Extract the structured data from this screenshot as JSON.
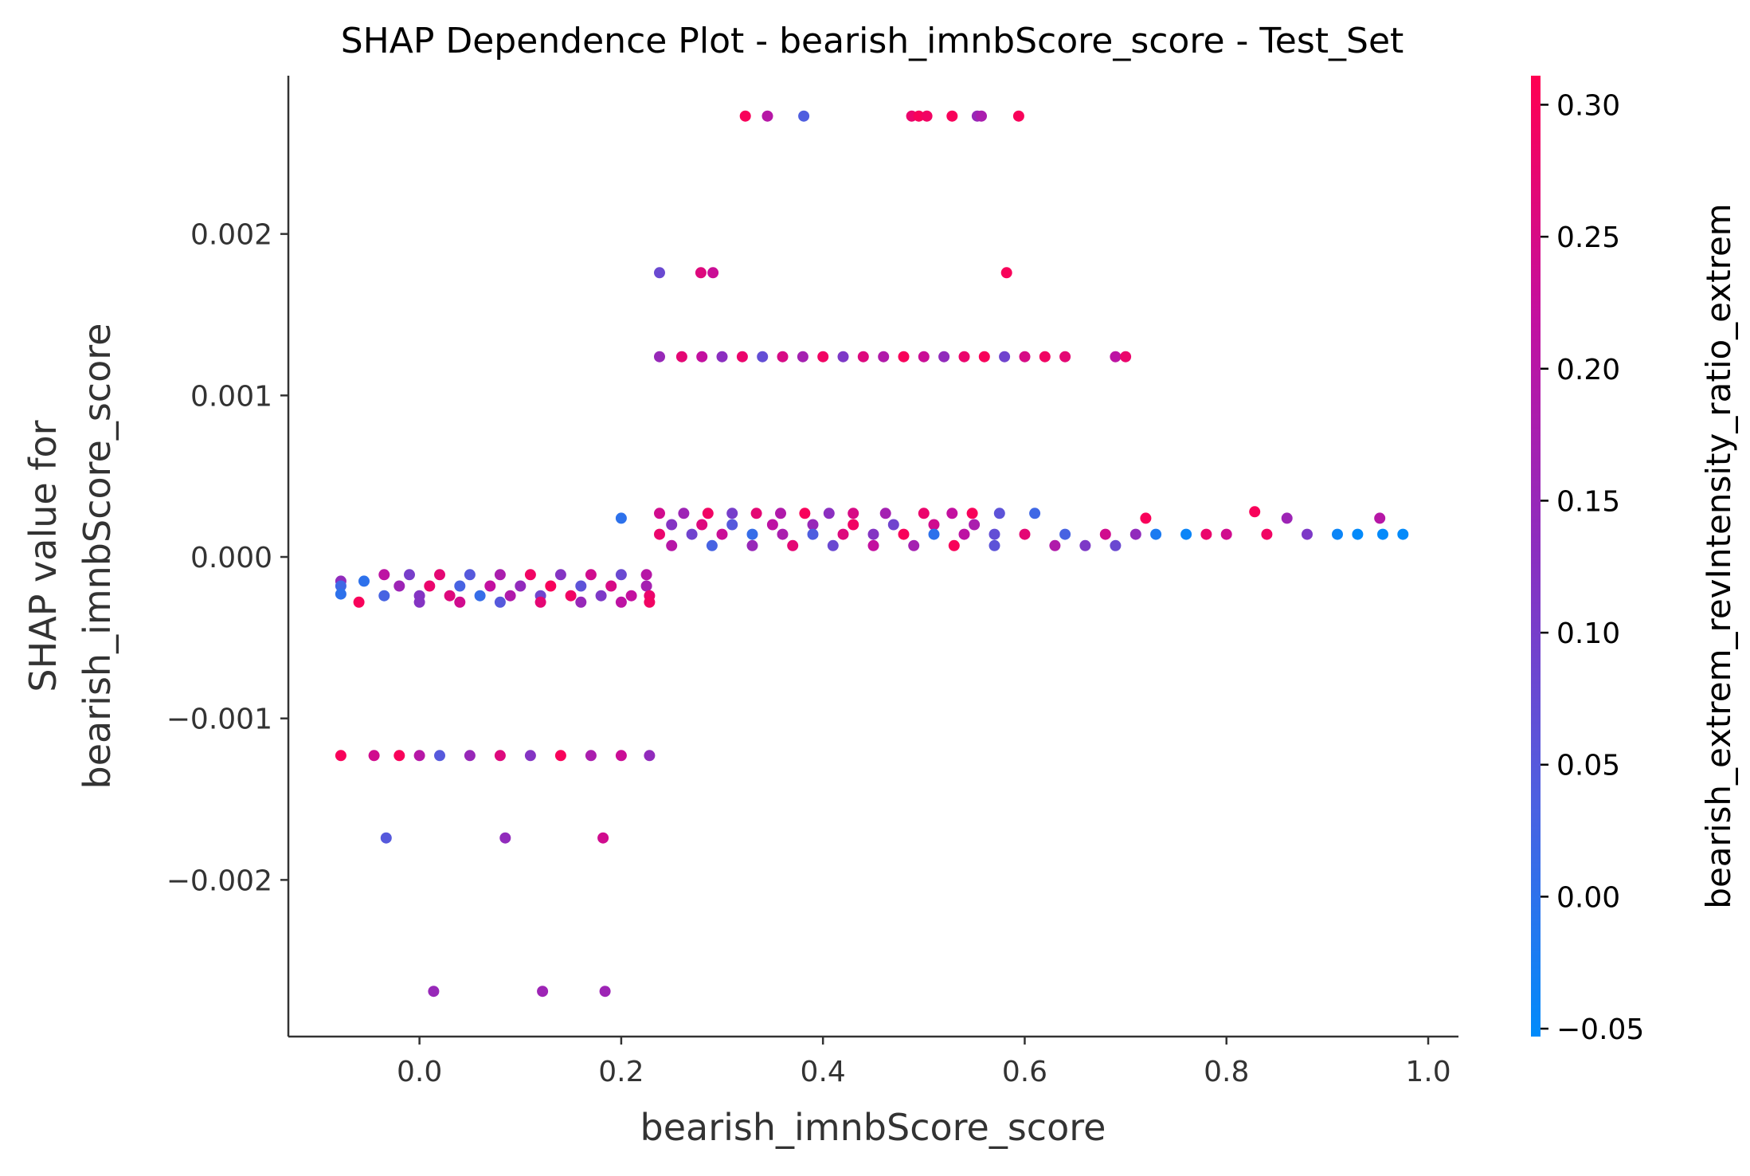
{
  "chart_data": {
    "type": "scatter",
    "title": "SHAP Dependence Plot - bearish_imnbScore_score - Test_Set",
    "xlabel": "bearish_imnbScore_score",
    "ylabel_line1": "SHAP value for",
    "ylabel_line2": "bearish_imnbScore_score",
    "xlim": [
      -0.13,
      1.03
    ],
    "ylim": [
      -0.00297,
      0.00298
    ],
    "xticks": [
      0.0,
      0.2,
      0.4,
      0.6,
      0.8,
      1.0
    ],
    "xtick_labels": [
      "0.0",
      "0.2",
      "0.4",
      "0.6",
      "0.8",
      "1.0"
    ],
    "yticks": [
      0.002,
      0.001,
      0.0,
      -0.001,
      -0.002
    ],
    "ytick_labels": [
      "0.002",
      "0.001",
      "0.000",
      "−0.001",
      "−0.002"
    ],
    "colorbar": {
      "label": "bearish_extrem_revIntensity_ratio_extrem",
      "range": [
        -0.053,
        0.311
      ],
      "ticks": [
        0.3,
        0.25,
        0.2,
        0.15,
        0.1,
        0.05,
        0.0,
        -0.05
      ],
      "tick_labels": [
        "0.30",
        "0.25",
        "0.20",
        "0.15",
        "0.10",
        "0.05",
        "0.00",
        "−0.05"
      ],
      "colormap": [
        "#008bfb",
        "#4e5fe0",
        "#8a2fc0",
        "#c3109f",
        "#ff0051"
      ]
    },
    "grid": false,
    "legend": "none",
    "points": [
      [
        0.323,
        0.00273,
        0.3
      ],
      [
        0.345,
        0.00273,
        0.2
      ],
      [
        0.381,
        0.00273,
        0.04
      ],
      [
        0.488,
        0.00273,
        0.28
      ],
      [
        0.495,
        0.00273,
        0.3
      ],
      [
        0.503,
        0.00273,
        0.29
      ],
      [
        0.528,
        0.00273,
        0.3
      ],
      [
        0.553,
        0.00273,
        0.15
      ],
      [
        0.557,
        0.00273,
        0.18
      ],
      [
        0.594,
        0.00273,
        0.3
      ],
      [
        0.238,
        0.00176,
        0.08
      ],
      [
        0.279,
        0.00176,
        0.26
      ],
      [
        0.291,
        0.00176,
        0.23
      ],
      [
        0.582,
        0.00176,
        0.3
      ],
      [
        0.238,
        0.00124,
        0.15
      ],
      [
        0.26,
        0.00124,
        0.27
      ],
      [
        0.28,
        0.00124,
        0.22
      ],
      [
        0.3,
        0.00124,
        0.13
      ],
      [
        0.32,
        0.00124,
        0.28
      ],
      [
        0.34,
        0.00124,
        0.07
      ],
      [
        0.36,
        0.00124,
        0.25
      ],
      [
        0.38,
        0.00124,
        0.17
      ],
      [
        0.4,
        0.00124,
        0.29
      ],
      [
        0.42,
        0.00124,
        0.11
      ],
      [
        0.44,
        0.00124,
        0.26
      ],
      [
        0.46,
        0.00124,
        0.19
      ],
      [
        0.48,
        0.00124,
        0.3
      ],
      [
        0.5,
        0.00124,
        0.23
      ],
      [
        0.52,
        0.00124,
        0.14
      ],
      [
        0.54,
        0.00124,
        0.28
      ],
      [
        0.56,
        0.00124,
        0.3
      ],
      [
        0.58,
        0.00124,
        0.09
      ],
      [
        0.6,
        0.00124,
        0.25
      ],
      [
        0.62,
        0.00124,
        0.29
      ],
      [
        0.64,
        0.00124,
        0.27
      ],
      [
        0.69,
        0.00124,
        0.21
      ],
      [
        0.7,
        0.00124,
        0.28
      ],
      [
        0.238,
        0.00027,
        0.24
      ],
      [
        0.262,
        0.00027,
        0.16
      ],
      [
        0.286,
        0.00027,
        0.29
      ],
      [
        0.31,
        0.00027,
        0.1
      ],
      [
        0.334,
        0.00027,
        0.27
      ],
      [
        0.358,
        0.00027,
        0.19
      ],
      [
        0.382,
        0.00027,
        0.3
      ],
      [
        0.406,
        0.00027,
        0.13
      ],
      [
        0.43,
        0.00027,
        0.25
      ],
      [
        0.462,
        0.00027,
        0.17
      ],
      [
        0.5,
        0.00027,
        0.28
      ],
      [
        0.528,
        0.00027,
        0.22
      ],
      [
        0.548,
        0.00027,
        0.3
      ],
      [
        0.575,
        0.00027,
        0.06
      ],
      [
        0.61,
        0.00027,
        0.02
      ],
      [
        0.2,
        0.00024,
        0.0
      ],
      [
        0.25,
        0.0002,
        0.12
      ],
      [
        0.28,
        0.0002,
        0.26
      ],
      [
        0.31,
        0.0002,
        0.05
      ],
      [
        0.35,
        0.0002,
        0.21
      ],
      [
        0.39,
        0.0002,
        0.15
      ],
      [
        0.43,
        0.0002,
        0.29
      ],
      [
        0.47,
        0.0002,
        0.09
      ],
      [
        0.51,
        0.0002,
        0.24
      ],
      [
        0.55,
        0.0002,
        0.18
      ],
      [
        0.72,
        0.00024,
        0.3
      ],
      [
        0.828,
        0.00028,
        0.3
      ],
      [
        0.86,
        0.00024,
        0.16
      ],
      [
        0.952,
        0.00024,
        0.2
      ],
      [
        0.238,
        0.00014,
        0.28
      ],
      [
        0.27,
        0.00014,
        0.09
      ],
      [
        0.3,
        0.00014,
        0.23
      ],
      [
        0.33,
        0.00014,
        0.01
      ],
      [
        0.36,
        0.00014,
        0.18
      ],
      [
        0.39,
        0.00014,
        0.04
      ],
      [
        0.42,
        0.00014,
        0.26
      ],
      [
        0.45,
        0.00014,
        0.12
      ],
      [
        0.48,
        0.00014,
        0.3
      ],
      [
        0.51,
        0.00014,
        0.0
      ],
      [
        0.54,
        0.00014,
        0.21
      ],
      [
        0.57,
        0.00014,
        0.07
      ],
      [
        0.6,
        0.00014,
        0.27
      ],
      [
        0.64,
        0.00014,
        0.03
      ],
      [
        0.68,
        0.00014,
        0.24
      ],
      [
        0.71,
        0.00014,
        0.14
      ],
      [
        0.73,
        0.00014,
        -0.02
      ],
      [
        0.76,
        0.00014,
        -0.04
      ],
      [
        0.78,
        0.00014,
        0.28
      ],
      [
        0.8,
        0.00014,
        0.24
      ],
      [
        0.84,
        0.00014,
        0.29
      ],
      [
        0.88,
        0.00014,
        0.11
      ],
      [
        0.91,
        0.00014,
        -0.04
      ],
      [
        0.93,
        0.00014,
        -0.05
      ],
      [
        0.955,
        0.00014,
        -0.05
      ],
      [
        0.975,
        0.00014,
        -0.05
      ],
      [
        0.25,
        7e-05,
        0.2
      ],
      [
        0.29,
        7e-05,
        0.03
      ],
      [
        0.33,
        7e-05,
        0.15
      ],
      [
        0.37,
        7e-05,
        0.27
      ],
      [
        0.41,
        7e-05,
        0.08
      ],
      [
        0.45,
        7e-05,
        0.22
      ],
      [
        0.49,
        7e-05,
        0.17
      ],
      [
        0.53,
        7e-05,
        0.3
      ],
      [
        0.57,
        7e-05,
        0.06
      ],
      [
        0.63,
        7e-05,
        0.19
      ],
      [
        0.66,
        7e-05,
        0.11
      ],
      [
        0.69,
        7e-05,
        0.08
      ],
      [
        -0.078,
        -0.00015,
        0.14
      ],
      [
        -0.055,
        -0.00015,
        0.0
      ],
      [
        -0.035,
        -0.00011,
        0.21
      ],
      [
        -0.01,
        -0.00011,
        0.1
      ],
      [
        0.02,
        -0.00011,
        0.27
      ],
      [
        0.05,
        -0.00011,
        0.05
      ],
      [
        0.08,
        -0.00011,
        0.18
      ],
      [
        0.11,
        -0.00011,
        0.29
      ],
      [
        0.14,
        -0.00011,
        0.12
      ],
      [
        0.17,
        -0.00011,
        0.24
      ],
      [
        0.2,
        -0.00011,
        0.08
      ],
      [
        0.225,
        -0.00011,
        0.2
      ],
      [
        -0.078,
        -0.00018,
        0.02
      ],
      [
        -0.02,
        -0.00018,
        0.16
      ],
      [
        0.01,
        -0.00018,
        0.28
      ],
      [
        0.04,
        -0.00018,
        0.03
      ],
      [
        0.07,
        -0.00018,
        0.22
      ],
      [
        0.1,
        -0.00018,
        0.14
      ],
      [
        0.13,
        -0.00018,
        0.3
      ],
      [
        0.16,
        -0.00018,
        0.06
      ],
      [
        0.19,
        -0.00018,
        0.25
      ],
      [
        0.225,
        -0.00018,
        0.17
      ],
      [
        -0.078,
        -0.00023,
        0.0
      ],
      [
        -0.035,
        -0.00024,
        0.03
      ],
      [
        0.0,
        -0.00024,
        0.12
      ],
      [
        0.03,
        -0.00024,
        0.26
      ],
      [
        0.06,
        -0.00024,
        0.01
      ],
      [
        0.09,
        -0.00024,
        0.19
      ],
      [
        0.12,
        -0.00024,
        0.09
      ],
      [
        0.15,
        -0.00024,
        0.29
      ],
      [
        0.18,
        -0.00024,
        0.11
      ],
      [
        0.21,
        -0.00024,
        0.22
      ],
      [
        0.228,
        -0.00024,
        0.28
      ],
      [
        -0.06,
        -0.00028,
        0.3
      ],
      [
        0.0,
        -0.00028,
        0.12
      ],
      [
        0.04,
        -0.00028,
        0.24
      ],
      [
        0.08,
        -0.00028,
        0.05
      ],
      [
        0.12,
        -0.00028,
        0.27
      ],
      [
        0.16,
        -0.00028,
        0.15
      ],
      [
        0.2,
        -0.00028,
        0.21
      ],
      [
        0.228,
        -0.00028,
        0.29
      ],
      [
        -0.078,
        -0.00123,
        0.3
      ],
      [
        -0.045,
        -0.00123,
        0.24
      ],
      [
        -0.02,
        -0.00123,
        0.3
      ],
      [
        0.0,
        -0.00123,
        0.2
      ],
      [
        0.02,
        -0.00123,
        0.05
      ],
      [
        0.05,
        -0.00123,
        0.15
      ],
      [
        0.08,
        -0.00123,
        0.26
      ],
      [
        0.11,
        -0.00123,
        0.12
      ],
      [
        0.14,
        -0.00123,
        0.3
      ],
      [
        0.17,
        -0.00123,
        0.18
      ],
      [
        0.2,
        -0.00123,
        0.23
      ],
      [
        0.228,
        -0.00123,
        0.14
      ],
      [
        -0.033,
        -0.00174,
        0.05
      ],
      [
        0.085,
        -0.00174,
        0.14
      ],
      [
        0.182,
        -0.00174,
        0.24
      ],
      [
        0.014,
        -0.00269,
        0.15
      ],
      [
        0.122,
        -0.00269,
        0.16
      ],
      [
        0.184,
        -0.00269,
        0.16
      ]
    ]
  }
}
